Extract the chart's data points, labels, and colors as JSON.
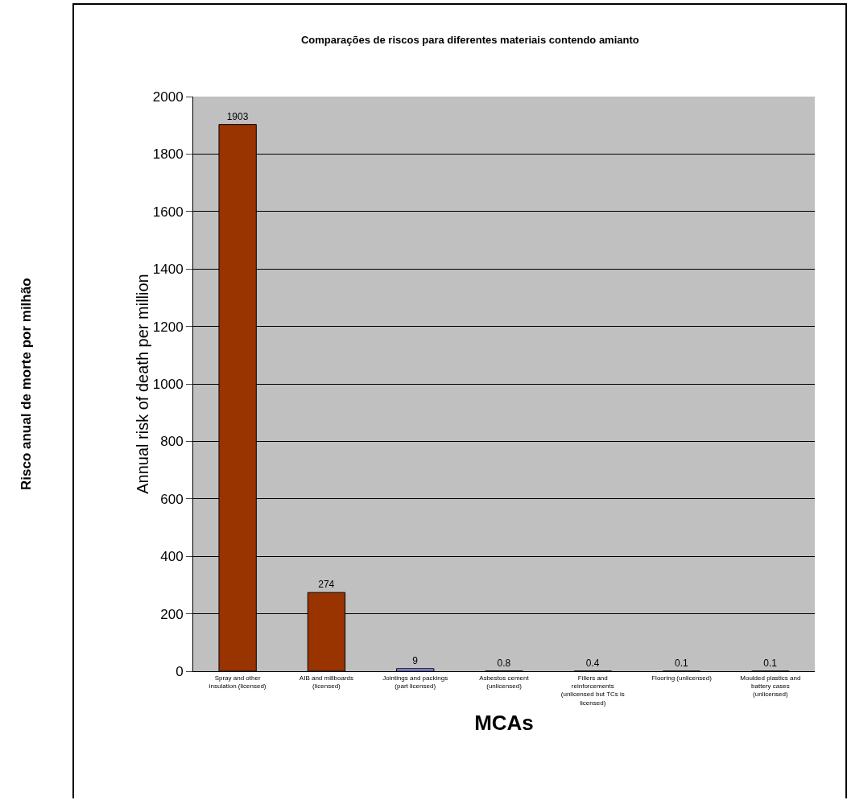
{
  "chart_data": {
    "type": "bar",
    "title": "Comparações de riscos para diferentes materiais contendo amianto",
    "xlabel": "MCAs",
    "ylabel": "Annual risk of death per million",
    "annotations": [
      "Risco anual de morte por milhão"
    ],
    "categories": [
      "Spray and other insulation (licensed)",
      "AIB and millboards (licensed)",
      "Jointings and packings (part licensed)",
      "Asbestos cement (unlicensed)",
      "Fillers and reinforcements (unlicensed but TCs is licensed)",
      "Flooring (unlicensed)",
      "Moulded plastics and battery cases (unlicensed)"
    ],
    "values": [
      1903,
      274,
      9,
      0.8,
      0.4,
      0.1,
      0.1
    ],
    "colors": [
      "#993300",
      "#993300",
      "#9999ff",
      "#9999ff",
      "#9999ff",
      "#9999ff",
      "#9999ff"
    ],
    "ylim": [
      0,
      2000
    ],
    "yticks": [
      0,
      200,
      400,
      600,
      800,
      1000,
      1200,
      1400,
      1600,
      1800,
      2000
    ],
    "grid": "y",
    "data_labels": true
  }
}
